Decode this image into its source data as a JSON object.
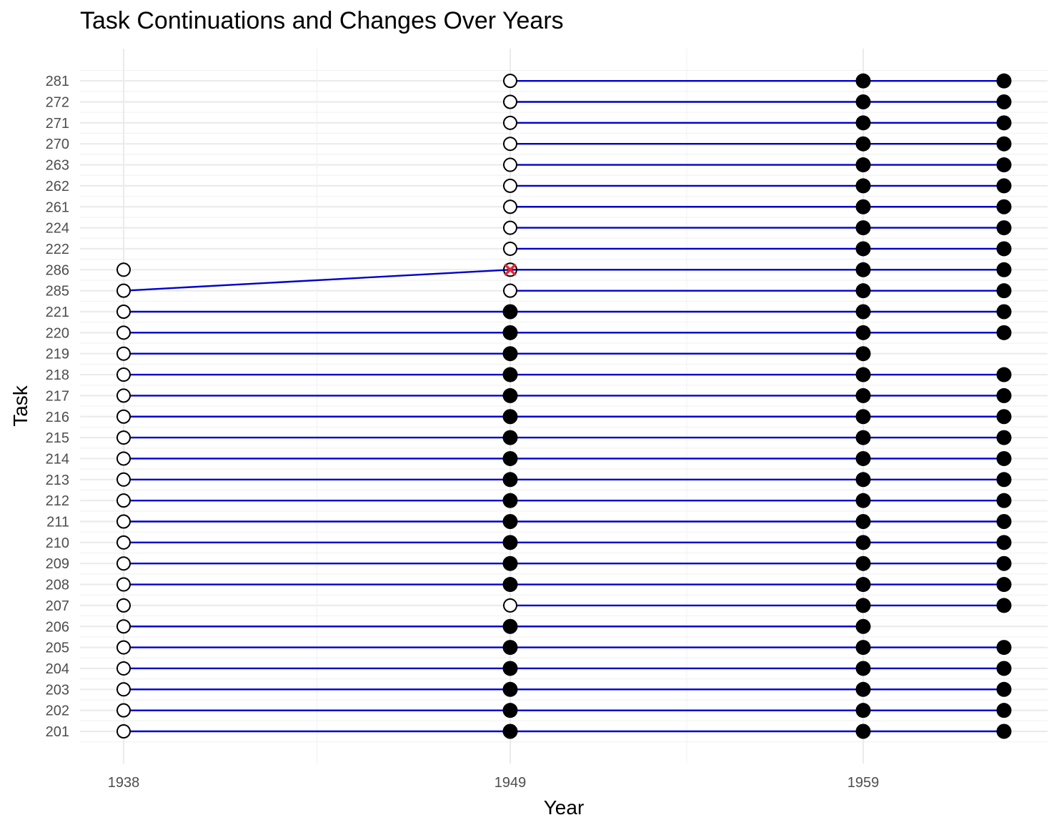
{
  "chart_data": {
    "type": "scatter",
    "title": "Task Continuations and Changes Over Years",
    "xlabel": "Year",
    "ylabel": "Task",
    "x_tick_labels": [
      "1938",
      "1949",
      "1959"
    ],
    "categories": [
      "201",
      "202",
      "203",
      "204",
      "205",
      "206",
      "207",
      "208",
      "209",
      "210",
      "211",
      "212",
      "213",
      "214",
      "215",
      "216",
      "217",
      "218",
      "219",
      "220",
      "221",
      "285",
      "286",
      "222",
      "224",
      "261",
      "262",
      "263",
      "270",
      "271",
      "272",
      "281"
    ],
    "grid": true,
    "colors": {
      "line": "#0000cc",
      "point": "#000000",
      "cross": "#e8262a",
      "grid_major": "#ebebeb",
      "grid_minor": "#f2f2f2"
    },
    "points": [
      {
        "task": "201",
        "x": 1938,
        "shape": "open"
      },
      {
        "task": "201",
        "x": 1949,
        "shape": "filled"
      },
      {
        "task": "201",
        "x": 1959,
        "shape": "filled"
      },
      {
        "task": "201",
        "x": 1963,
        "shape": "filled"
      },
      {
        "task": "202",
        "x": 1938,
        "shape": "open"
      },
      {
        "task": "202",
        "x": 1949,
        "shape": "filled"
      },
      {
        "task": "202",
        "x": 1959,
        "shape": "filled"
      },
      {
        "task": "202",
        "x": 1963,
        "shape": "filled"
      },
      {
        "task": "203",
        "x": 1938,
        "shape": "open"
      },
      {
        "task": "203",
        "x": 1949,
        "shape": "filled"
      },
      {
        "task": "203",
        "x": 1959,
        "shape": "filled"
      },
      {
        "task": "203",
        "x": 1963,
        "shape": "filled"
      },
      {
        "task": "204",
        "x": 1938,
        "shape": "open"
      },
      {
        "task": "204",
        "x": 1949,
        "shape": "filled"
      },
      {
        "task": "204",
        "x": 1959,
        "shape": "filled"
      },
      {
        "task": "204",
        "x": 1963,
        "shape": "filled"
      },
      {
        "task": "205",
        "x": 1938,
        "shape": "open"
      },
      {
        "task": "205",
        "x": 1949,
        "shape": "filled"
      },
      {
        "task": "205",
        "x": 1959,
        "shape": "filled"
      },
      {
        "task": "205",
        "x": 1963,
        "shape": "filled"
      },
      {
        "task": "206",
        "x": 1938,
        "shape": "open"
      },
      {
        "task": "206",
        "x": 1949,
        "shape": "filled"
      },
      {
        "task": "206",
        "x": 1959,
        "shape": "filled"
      },
      {
        "task": "207",
        "x": 1938,
        "shape": "open"
      },
      {
        "task": "207",
        "x": 1949,
        "shape": "open"
      },
      {
        "task": "207",
        "x": 1959,
        "shape": "filled"
      },
      {
        "task": "207",
        "x": 1963,
        "shape": "filled"
      },
      {
        "task": "208",
        "x": 1938,
        "shape": "open"
      },
      {
        "task": "208",
        "x": 1949,
        "shape": "filled"
      },
      {
        "task": "208",
        "x": 1959,
        "shape": "filled"
      },
      {
        "task": "208",
        "x": 1963,
        "shape": "filled"
      },
      {
        "task": "209",
        "x": 1938,
        "shape": "open"
      },
      {
        "task": "209",
        "x": 1949,
        "shape": "filled"
      },
      {
        "task": "209",
        "x": 1959,
        "shape": "filled"
      },
      {
        "task": "209",
        "x": 1963,
        "shape": "filled"
      },
      {
        "task": "210",
        "x": 1938,
        "shape": "open"
      },
      {
        "task": "210",
        "x": 1949,
        "shape": "filled"
      },
      {
        "task": "210",
        "x": 1959,
        "shape": "filled"
      },
      {
        "task": "210",
        "x": 1963,
        "shape": "filled"
      },
      {
        "task": "211",
        "x": 1938,
        "shape": "open"
      },
      {
        "task": "211",
        "x": 1949,
        "shape": "filled"
      },
      {
        "task": "211",
        "x": 1959,
        "shape": "filled"
      },
      {
        "task": "211",
        "x": 1963,
        "shape": "filled"
      },
      {
        "task": "212",
        "x": 1938,
        "shape": "open"
      },
      {
        "task": "212",
        "x": 1949,
        "shape": "filled"
      },
      {
        "task": "212",
        "x": 1959,
        "shape": "filled"
      },
      {
        "task": "212",
        "x": 1963,
        "shape": "filled"
      },
      {
        "task": "213",
        "x": 1938,
        "shape": "open"
      },
      {
        "task": "213",
        "x": 1949,
        "shape": "filled"
      },
      {
        "task": "213",
        "x": 1959,
        "shape": "filled"
      },
      {
        "task": "213",
        "x": 1963,
        "shape": "filled"
      },
      {
        "task": "214",
        "x": 1938,
        "shape": "open"
      },
      {
        "task": "214",
        "x": 1949,
        "shape": "filled"
      },
      {
        "task": "214",
        "x": 1959,
        "shape": "filled"
      },
      {
        "task": "214",
        "x": 1963,
        "shape": "filled"
      },
      {
        "task": "215",
        "x": 1938,
        "shape": "open"
      },
      {
        "task": "215",
        "x": 1949,
        "shape": "filled"
      },
      {
        "task": "215",
        "x": 1959,
        "shape": "filled"
      },
      {
        "task": "215",
        "x": 1963,
        "shape": "filled"
      },
      {
        "task": "216",
        "x": 1938,
        "shape": "open"
      },
      {
        "task": "216",
        "x": 1949,
        "shape": "filled"
      },
      {
        "task": "216",
        "x": 1959,
        "shape": "filled"
      },
      {
        "task": "216",
        "x": 1963,
        "shape": "filled"
      },
      {
        "task": "217",
        "x": 1938,
        "shape": "open"
      },
      {
        "task": "217",
        "x": 1949,
        "shape": "filled"
      },
      {
        "task": "217",
        "x": 1959,
        "shape": "filled"
      },
      {
        "task": "217",
        "x": 1963,
        "shape": "filled"
      },
      {
        "task": "218",
        "x": 1938,
        "shape": "open"
      },
      {
        "task": "218",
        "x": 1949,
        "shape": "filled"
      },
      {
        "task": "218",
        "x": 1959,
        "shape": "filled"
      },
      {
        "task": "218",
        "x": 1963,
        "shape": "filled"
      },
      {
        "task": "219",
        "x": 1938,
        "shape": "open"
      },
      {
        "task": "219",
        "x": 1949,
        "shape": "filled"
      },
      {
        "task": "219",
        "x": 1959,
        "shape": "filled"
      },
      {
        "task": "220",
        "x": 1938,
        "shape": "open"
      },
      {
        "task": "220",
        "x": 1949,
        "shape": "filled"
      },
      {
        "task": "220",
        "x": 1959,
        "shape": "filled"
      },
      {
        "task": "220",
        "x": 1963,
        "shape": "filled"
      },
      {
        "task": "221",
        "x": 1938,
        "shape": "open"
      },
      {
        "task": "221",
        "x": 1949,
        "shape": "filled"
      },
      {
        "task": "221",
        "x": 1959,
        "shape": "filled"
      },
      {
        "task": "221",
        "x": 1963,
        "shape": "filled"
      },
      {
        "task": "285",
        "x": 1938,
        "shape": "open"
      },
      {
        "task": "285",
        "x": 1949,
        "shape": "open"
      },
      {
        "task": "285",
        "x": 1959,
        "shape": "filled"
      },
      {
        "task": "285",
        "x": 1963,
        "shape": "filled"
      },
      {
        "task": "286",
        "x": 1938,
        "shape": "open"
      },
      {
        "task": "286",
        "x": 1949,
        "shape": "cross"
      },
      {
        "task": "286",
        "x": 1959,
        "shape": "filled"
      },
      {
        "task": "286",
        "x": 1963,
        "shape": "filled"
      },
      {
        "task": "222",
        "x": 1949,
        "shape": "open"
      },
      {
        "task": "222",
        "x": 1959,
        "shape": "filled"
      },
      {
        "task": "222",
        "x": 1963,
        "shape": "filled"
      },
      {
        "task": "224",
        "x": 1949,
        "shape": "open"
      },
      {
        "task": "224",
        "x": 1959,
        "shape": "filled"
      },
      {
        "task": "224",
        "x": 1963,
        "shape": "filled"
      },
      {
        "task": "261",
        "x": 1949,
        "shape": "open"
      },
      {
        "task": "261",
        "x": 1959,
        "shape": "filled"
      },
      {
        "task": "261",
        "x": 1963,
        "shape": "filled"
      },
      {
        "task": "262",
        "x": 1949,
        "shape": "open"
      },
      {
        "task": "262",
        "x": 1959,
        "shape": "filled"
      },
      {
        "task": "262",
        "x": 1963,
        "shape": "filled"
      },
      {
        "task": "263",
        "x": 1949,
        "shape": "open"
      },
      {
        "task": "263",
        "x": 1959,
        "shape": "filled"
      },
      {
        "task": "263",
        "x": 1963,
        "shape": "filled"
      },
      {
        "task": "270",
        "x": 1949,
        "shape": "open"
      },
      {
        "task": "270",
        "x": 1959,
        "shape": "filled"
      },
      {
        "task": "270",
        "x": 1963,
        "shape": "filled"
      },
      {
        "task": "271",
        "x": 1949,
        "shape": "open"
      },
      {
        "task": "271",
        "x": 1959,
        "shape": "filled"
      },
      {
        "task": "271",
        "x": 1963,
        "shape": "filled"
      },
      {
        "task": "272",
        "x": 1949,
        "shape": "open"
      },
      {
        "task": "272",
        "x": 1959,
        "shape": "filled"
      },
      {
        "task": "272",
        "x": 1963,
        "shape": "filled"
      },
      {
        "task": "281",
        "x": 1949,
        "shape": "open"
      },
      {
        "task": "281",
        "x": 1959,
        "shape": "filled"
      },
      {
        "task": "281",
        "x": 1963,
        "shape": "filled"
      }
    ],
    "links": [
      {
        "from": {
          "task": "201",
          "x": 1938
        },
        "to": {
          "task": "201",
          "x": 1963
        }
      },
      {
        "from": {
          "task": "202",
          "x": 1938
        },
        "to": {
          "task": "202",
          "x": 1963
        }
      },
      {
        "from": {
          "task": "203",
          "x": 1938
        },
        "to": {
          "task": "203",
          "x": 1963
        }
      },
      {
        "from": {
          "task": "204",
          "x": 1938
        },
        "to": {
          "task": "204",
          "x": 1963
        }
      },
      {
        "from": {
          "task": "205",
          "x": 1938
        },
        "to": {
          "task": "205",
          "x": 1963
        }
      },
      {
        "from": {
          "task": "206",
          "x": 1938
        },
        "to": {
          "task": "206",
          "x": 1959
        }
      },
      {
        "from": {
          "task": "207",
          "x": 1949
        },
        "to": {
          "task": "207",
          "x": 1963
        }
      },
      {
        "from": {
          "task": "208",
          "x": 1938
        },
        "to": {
          "task": "208",
          "x": 1963
        }
      },
      {
        "from": {
          "task": "209",
          "x": 1938
        },
        "to": {
          "task": "209",
          "x": 1963
        }
      },
      {
        "from": {
          "task": "210",
          "x": 1938
        },
        "to": {
          "task": "210",
          "x": 1963
        }
      },
      {
        "from": {
          "task": "211",
          "x": 1938
        },
        "to": {
          "task": "211",
          "x": 1963
        }
      },
      {
        "from": {
          "task": "212",
          "x": 1938
        },
        "to": {
          "task": "212",
          "x": 1963
        }
      },
      {
        "from": {
          "task": "213",
          "x": 1938
        },
        "to": {
          "task": "213",
          "x": 1963
        }
      },
      {
        "from": {
          "task": "214",
          "x": 1938
        },
        "to": {
          "task": "214",
          "x": 1963
        }
      },
      {
        "from": {
          "task": "215",
          "x": 1938
        },
        "to": {
          "task": "215",
          "x": 1963
        }
      },
      {
        "from": {
          "task": "216",
          "x": 1938
        },
        "to": {
          "task": "216",
          "x": 1963
        }
      },
      {
        "from": {
          "task": "217",
          "x": 1938
        },
        "to": {
          "task": "217",
          "x": 1963
        }
      },
      {
        "from": {
          "task": "218",
          "x": 1938
        },
        "to": {
          "task": "218",
          "x": 1963
        }
      },
      {
        "from": {
          "task": "219",
          "x": 1938
        },
        "to": {
          "task": "219",
          "x": 1959
        }
      },
      {
        "from": {
          "task": "220",
          "x": 1938
        },
        "to": {
          "task": "220",
          "x": 1963
        }
      },
      {
        "from": {
          "task": "221",
          "x": 1938
        },
        "to": {
          "task": "221",
          "x": 1963
        }
      },
      {
        "from": {
          "task": "285",
          "x": 1938
        },
        "to": {
          "task": "286",
          "x": 1949
        }
      },
      {
        "from": {
          "task": "285",
          "x": 1949
        },
        "to": {
          "task": "285",
          "x": 1963
        }
      },
      {
        "from": {
          "task": "286",
          "x": 1949
        },
        "to": {
          "task": "286",
          "x": 1963
        }
      },
      {
        "from": {
          "task": "222",
          "x": 1949
        },
        "to": {
          "task": "222",
          "x": 1963
        }
      },
      {
        "from": {
          "task": "224",
          "x": 1949
        },
        "to": {
          "task": "224",
          "x": 1963
        }
      },
      {
        "from": {
          "task": "261",
          "x": 1949
        },
        "to": {
          "task": "261",
          "x": 1963
        }
      },
      {
        "from": {
          "task": "262",
          "x": 1949
        },
        "to": {
          "task": "262",
          "x": 1963
        }
      },
      {
        "from": {
          "task": "263",
          "x": 1949
        },
        "to": {
          "task": "263",
          "x": 1963
        }
      },
      {
        "from": {
          "task": "270",
          "x": 1949
        },
        "to": {
          "task": "270",
          "x": 1963
        }
      },
      {
        "from": {
          "task": "271",
          "x": 1949
        },
        "to": {
          "task": "271",
          "x": 1963
        }
      },
      {
        "from": {
          "task": "272",
          "x": 1949
        },
        "to": {
          "task": "272",
          "x": 1963
        }
      },
      {
        "from": {
          "task": "281",
          "x": 1949
        },
        "to": {
          "task": "281",
          "x": 1963
        }
      }
    ]
  }
}
